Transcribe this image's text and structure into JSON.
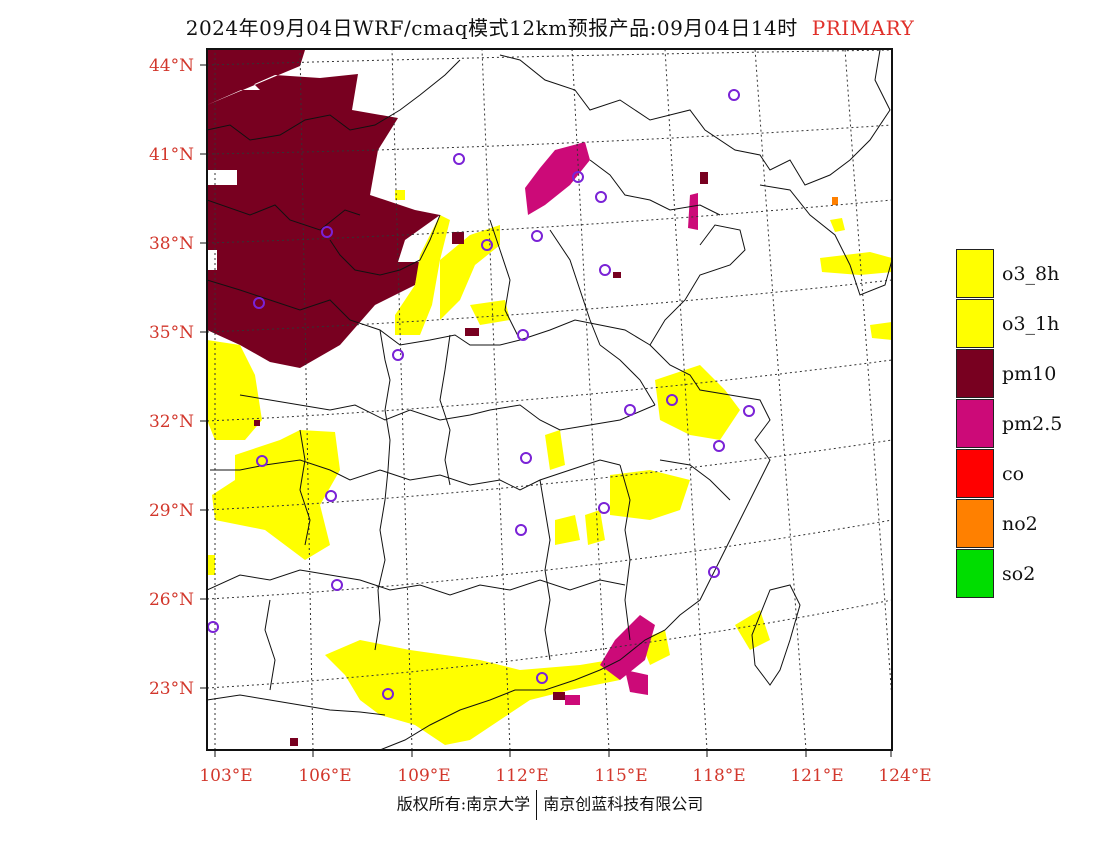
{
  "title": {
    "main": "2024年09月04日WRF/cmaq模式12km预报产品:09月04日14时",
    "tag": "PRIMARY"
  },
  "axes": {
    "lat_labels": [
      "44°N",
      "41°N",
      "38°N",
      "35°N",
      "32°N",
      "29°N",
      "26°N",
      "23°N"
    ],
    "lon_labels": [
      "103°E",
      "106°E",
      "109°E",
      "112°E",
      "115°E",
      "118°E",
      "121°E",
      "124°E"
    ]
  },
  "legend": [
    {
      "label": "o3_8h",
      "color": "#ffff00"
    },
    {
      "label": "o3_1h",
      "color": "#ffff00"
    },
    {
      "label": "pm10",
      "color": "#780020"
    },
    {
      "label": "pm2.5",
      "color": "#cc0a78"
    },
    {
      "label": "co",
      "color": "#ff0000"
    },
    {
      "label": "no2",
      "color": "#ff8000"
    },
    {
      "label": "so2",
      "color": "#00dd00"
    }
  ],
  "footer": {
    "left": "版权所有:南京大学",
    "right": "南京创蓝科技有限公司"
  }
}
